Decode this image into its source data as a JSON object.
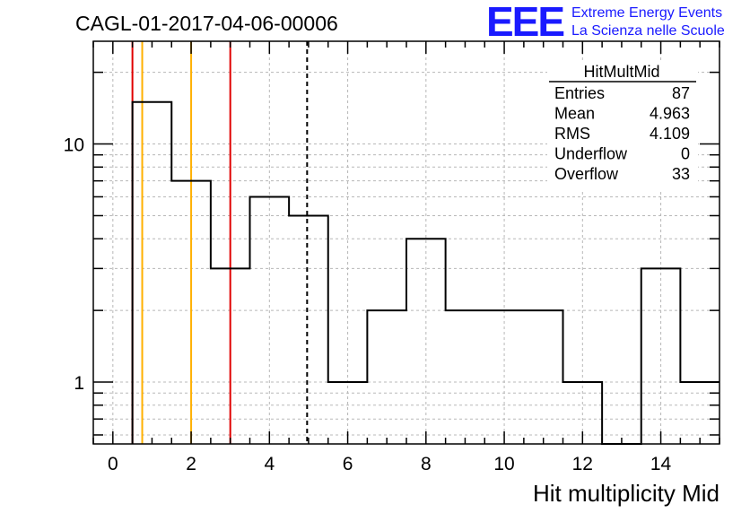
{
  "chart_data": {
    "type": "histogram",
    "title": "CAGL-01-2017-04-06-00006",
    "xlabel": "Hit multiplicity Mid",
    "ylabel": "",
    "xlim": [
      -0.5,
      15.5
    ],
    "ylim": [
      0.55,
      27
    ],
    "yscale": "log",
    "grid": true,
    "bin_width": 1,
    "bins": [
      {
        "x": 1,
        "y": 15
      },
      {
        "x": 2,
        "y": 7
      },
      {
        "x": 3,
        "y": 3
      },
      {
        "x": 4,
        "y": 6
      },
      {
        "x": 5,
        "y": 5
      },
      {
        "x": 6,
        "y": 1
      },
      {
        "x": 7,
        "y": 2
      },
      {
        "x": 8,
        "y": 4
      },
      {
        "x": 9,
        "y": 2
      },
      {
        "x": 10,
        "y": 2
      },
      {
        "x": 11,
        "y": 2
      },
      {
        "x": 12,
        "y": 1
      },
      {
        "x": 13,
        "y": 0
      },
      {
        "x": 14,
        "y": 3
      },
      {
        "x": 15,
        "y": 1
      }
    ],
    "x_ticks": [
      "0",
      "2",
      "4",
      "6",
      "8",
      "10",
      "12",
      "14"
    ],
    "y_ticks": [
      "1",
      "10"
    ],
    "vertical_lines": [
      {
        "x": 0.5,
        "color": "#e00000",
        "style": "solid"
      },
      {
        "x": 0.75,
        "color": "#ffb000",
        "style": "solid"
      },
      {
        "x": 2,
        "color": "#ffb000",
        "style": "solid"
      },
      {
        "x": 3,
        "color": "#e00000",
        "style": "solid"
      },
      {
        "x": 4.963,
        "color": "#000000",
        "style": "dashed"
      }
    ]
  },
  "stats_box": {
    "title": "HitMultMid",
    "rows": [
      {
        "label": "Entries",
        "value": "87"
      },
      {
        "label": "Mean",
        "value": "4.963"
      },
      {
        "label": "RMS",
        "value": "4.109"
      },
      {
        "label": "Underflow",
        "value": "0"
      },
      {
        "label": "Overflow",
        "value": "33"
      }
    ]
  },
  "logo": {
    "mark": "EEE",
    "line1": "Extreme Energy Events",
    "line2": "La Scienza nelle Scuole",
    "color": "#1a1aff"
  }
}
